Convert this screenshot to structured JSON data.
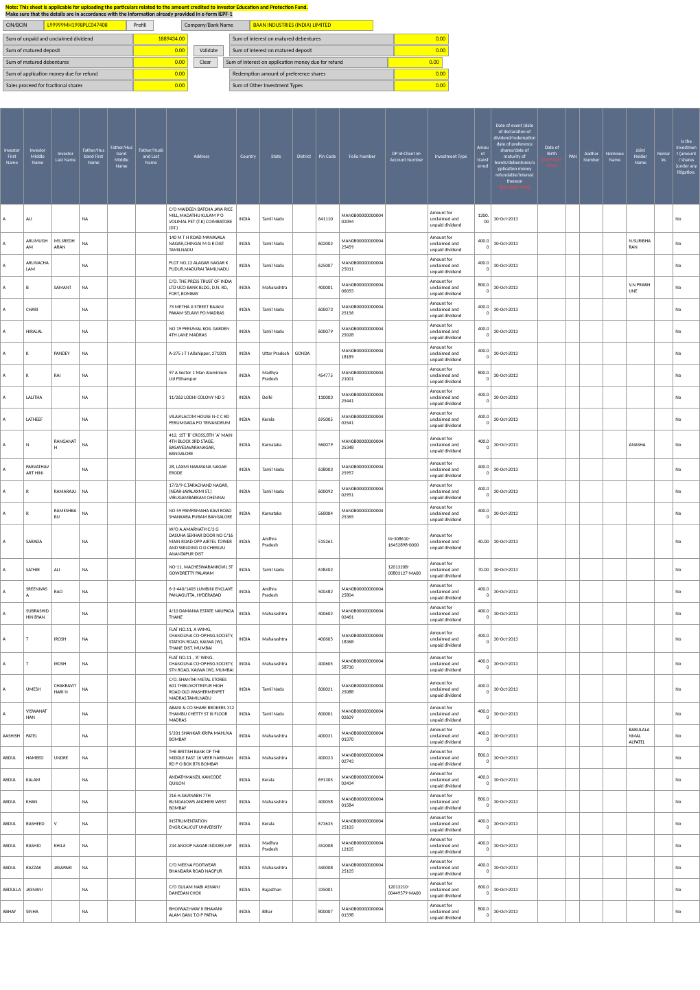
{
  "note": {
    "line1": "Note: This sheet is applicable for uploading the particulars related to the amount credited to Investor Education and Protection Fund.",
    "line2": "Make sure that the details are in accordance with the information already provided in e-form IEPF-1"
  },
  "form": {
    "cin_lbl": "CIN/BCIN",
    "cin_val": "L99999MH1998PLC047408",
    "prefill_btn": "Prefill",
    "company_lbl": "Company/Bank Name",
    "company_val": "BAAN INDUSTRIES (INDIA) LIMITED"
  },
  "sums": {
    "rows": [
      {
        "ll": "Sum of unpaid and unclaimed dividend",
        "lv": "1889434.00",
        "btn": "",
        "rl": "Sum of interest on matured debentures",
        "rv": "0.00"
      },
      {
        "ll": "Sum of matured deposit",
        "lv": "0.00",
        "btn": "Validate",
        "rl": "Sum of interest on matured deposit",
        "rv": "0.00"
      },
      {
        "ll": "Sum of matured debentures",
        "lv": "0.00",
        "btn": "Clear",
        "rl": "Sum of interest on application money due for refund",
        "rv": "0.00"
      },
      {
        "ll": "Sum of application money due for refund",
        "lv": "0.00",
        "btn": "",
        "rl": "Redemption amount of preference shares",
        "rv": "0.00"
      },
      {
        "ll": "Sales proceed for fractional shares",
        "lv": "0.00",
        "btn": "",
        "rl": "Sum of Other Investment Types",
        "rv": "0.00"
      }
    ]
  },
  "columns": [
    "Investor First Name",
    "Investor Middle Name",
    "Investor Last Name",
    "Father/Husband First Name",
    "Father/Husband Middle Name",
    "Father/Husband Last Name",
    "Address",
    "Country",
    "State",
    "District",
    "Pin Code",
    "Folio Number",
    "DP Id-Client Id-Account Number",
    "Investment Type",
    "Amount transferred",
    "Date of event (date of declaration of dividend/redemption date of preference shares/date of maturity of bonds/debentures/application money refundable/interest thereon",
    "Date of Birth",
    "PAN",
    "Aadhar Number",
    "Nominee Name",
    "Joint Holder Name",
    "Remarks",
    "Is the Investment (amount / shares )under any litigation."
  ],
  "col_special": {
    "doe_red": "(DD-MON-YYYY)",
    "dob_red": "(DD-MON-YYYY)"
  },
  "rows": [
    {
      "fn": "A",
      "mn": "ALI",
      "ln": "",
      "ffn": "NA",
      "addr": "C/O MAIDEEN BATCHA JAYA RICE MILL,MADATHU KULAM P O VOLIMAL PET (T.K) COIMBATORE (DT.)",
      "ctry": "INDIA",
      "st": "Tamil Nadu",
      "dist": "",
      "pin": "641110",
      "folio": "MAN0B00000000004 02094",
      "dp": "",
      "itype": "Amount for unclaimed and unpaid dividend",
      "amt": "1200.00",
      "doe": "30-Oct-2013",
      "lit": "No"
    },
    {
      "fn": "A",
      "mn": "ARUMUGHAM",
      "ln": "MS.SREDHARAN",
      "ffn": "NA",
      "addr": "140 M T H ROAD MANAVALA NAGAR,CHINGAI M G R DIST TAMILNADU",
      "ctry": "INDIA",
      "st": "Tamil Nadu",
      "dist": "",
      "pin": "602002",
      "folio": "MAN0B00000000004 25459",
      "dp": "",
      "itype": "Amount for unclaimed and unpaid dividend",
      "amt": "400.00",
      "doe": "30-Oct-2013",
      "jh": "N.SURIBHARAN",
      "lit": "No"
    },
    {
      "fn": "A",
      "mn": "ARUNACHALAM",
      "ln": "",
      "ffn": "NA",
      "addr": "PLOT NO.13 ALAGAR NAGAR K PUDUR,MADURAI TAMILNADU",
      "ctry": "INDIA",
      "st": "Tamil Nadu",
      "dist": "",
      "pin": "625007",
      "folio": "MAN0B00000000004 25011",
      "dp": "",
      "itype": "Amount for unclaimed and unpaid dividend",
      "amt": "400.00",
      "doe": "30-Oct-2013",
      "lit": "No"
    },
    {
      "fn": "A",
      "mn": "B",
      "ln": "SAMANT",
      "ffn": "NA",
      "addr": "C/O. THE PRESS TRUST OF INDIA LTD UCO BANK BLDG, D.N. RD, FORT, BOMBAY",
      "ctry": "INDIA",
      "st": "Maharashtra",
      "dist": "",
      "pin": "400001",
      "folio": "MAN0B00000000004 06055",
      "dp": "",
      "itype": "Amount for unclaimed and unpaid dividend",
      "amt": "800.00",
      "doe": "30-Oct-2013",
      "jh": "V.N.PRABHUNE",
      "lit": "No"
    },
    {
      "fn": "A",
      "mn": "CHARI",
      "ln": "",
      "ffn": "NA",
      "addr": "75 METHA JI STREET RAJANI PAKAM SELAIVI PO MADRAS",
      "ctry": "INDIA",
      "st": "Tamil Nadu",
      "dist": "",
      "pin": "600073",
      "folio": "MAN0B00000000004 25156",
      "dp": "",
      "itype": "Amount for unclaimed and unpaid dividend",
      "amt": "400.00",
      "doe": "30-Oct-2013",
      "lit": "No"
    },
    {
      "fn": "A",
      "mn": "HIRALAL",
      "ln": "",
      "ffn": "NA",
      "addr": "NO 19 PERUMAL KOIL GARDEN 4TH LANE MADRAS",
      "ctry": "INDIA",
      "st": "Tamil Nadu",
      "dist": "",
      "pin": "600079",
      "folio": "MAN0B00000000004 25028",
      "dp": "",
      "itype": "Amount for unclaimed and unpaid dividend",
      "amt": "400.00",
      "doe": "30-Oct-2013",
      "lit": "No"
    },
    {
      "fn": "A",
      "mn": "K",
      "ln": "PANDEY",
      "ffn": "NA",
      "addr": "A-275 J T I Allahipper, 271001",
      "ctry": "INDIA",
      "st": "Uttar Pradesh",
      "dist": "GONDA",
      "pin": "",
      "folio": "MAN0B00000000004 18189",
      "dp": "",
      "itype": "Amount for unclaimed and unpaid dividend",
      "amt": "400.00",
      "doe": "30-Oct-2013",
      "lit": "No"
    },
    {
      "fn": "A",
      "mn": "K",
      "ln": "RAI",
      "ffn": "NA",
      "addr": "97 A Sector 1 Man Aluminium Ltd Pithampur",
      "ctry": "INDIA",
      "st": "Madhya Pradesh",
      "dist": "",
      "pin": "454775",
      "folio": "MAN0B00000000004 21001",
      "dp": "",
      "itype": "Amount for unclaimed and unpaid dividend",
      "amt": "800.00",
      "doe": "30-Oct-2013",
      "lit": "No"
    },
    {
      "fn": "A",
      "mn": "LALITHA",
      "ln": "",
      "ffn": "NA",
      "addr": "11/262 LODHI COLONY ND 3",
      "ctry": "INDIA",
      "st": "Delhi",
      "dist": "",
      "pin": "110003",
      "folio": "MAN0B00000000004 25441",
      "dp": "",
      "itype": "Amount for unclaimed and unpaid dividend",
      "amt": "400.00",
      "doe": "30-Oct-2013",
      "lit": "No"
    },
    {
      "fn": "A",
      "mn": "LATHEEF",
      "ln": "",
      "ffn": "NA",
      "addr": "VILAVILACOM HOUSE N-C C RD PERUMGADA PO TRIVANDRUM",
      "ctry": "INDIA",
      "st": "Kerala",
      "dist": "",
      "pin": "695005",
      "folio": "MAN0B00000000004 02541",
      "dp": "",
      "itype": "Amount for unclaimed and unpaid dividend",
      "amt": "400.00",
      "doe": "30-Oct-2013",
      "lit": "No"
    },
    {
      "fn": "A",
      "mn": "N",
      "ln": "RANGANATH",
      "ffn": "NA",
      "addr": "412, 1ST 'B' CROSS,8TH 'A' MAIN 4TH BLOCK 3RD STAGE, BASAVESAVARANAGAR, BANGALORE",
      "ctry": "INDIA",
      "st": "Karnataka",
      "dist": "",
      "pin": "560079",
      "folio": "MAN0B00000000004 25348",
      "dp": "",
      "itype": "Amount for unclaimed and unpaid dividend",
      "amt": "400.00",
      "doe": "30-Oct-2013",
      "jh": "ANASHA",
      "lit": "No"
    },
    {
      "fn": "A",
      "mn": "PARVATHAVART HINI",
      "ln": "",
      "ffn": "NA",
      "addr": "28, LAXMI NARAYANA NAGAR ERODE",
      "ctry": "INDIA",
      "st": "Tamil Nadu",
      "dist": "",
      "pin": "638003",
      "folio": "MAN0B00000000004 25957",
      "dp": "",
      "itype": "Amount for unclaimed and unpaid dividend",
      "amt": "400.00",
      "doe": "30-Oct-2013",
      "lit": "No"
    },
    {
      "fn": "A",
      "mn": "R",
      "ln": "RAMARAJU",
      "ffn": "NA",
      "addr": "17/2/9-C,TARACHAND NAGAR, (NEAR-JAYALAXMI ST.) VIRUGAMBAKKAM CHENNAI",
      "ctry": "INDIA",
      "st": "Tamil Nadu",
      "dist": "",
      "pin": "600092",
      "folio": "MAN0B00000000004 02951",
      "dp": "",
      "itype": "Amount for unclaimed and unpaid dividend",
      "amt": "400.00",
      "doe": "30-Oct-2013",
      "lit": "No"
    },
    {
      "fn": "A",
      "mn": "R",
      "ln": "RAMESHBABU",
      "ffn": "NA",
      "addr": "NO 59 PAMPAMAHA KAVI ROAD SHANKARA PURAM BANGALORE",
      "ctry": "INDIA",
      "st": "Karnataka",
      "dist": "",
      "pin": "560004",
      "folio": "MAN0B00000000004 25365",
      "dp": "",
      "itype": "Amount for unclaimed and unpaid dividend",
      "amt": "400.00",
      "doe": "30-Oct-2013",
      "lit": "No"
    },
    {
      "fn": "A",
      "mn": "SARADA",
      "ln": "",
      "ffn": "NA",
      "addr": "W/O A.AMARNATH C/2 G DASUHA SEKHAR DOOR NO C/16 MAIN ROAD OPP AIRTEL TOWER AND WELDING O D CHERLVU ANANTAPUR DIST",
      "ctry": "INDIA",
      "st": "Andhra Pradesh",
      "dist": "",
      "pin": "515261",
      "folio": "",
      "dp": "IN-308610-16452898-0000",
      "itype": "Amount for unclaimed and unpaid dividend",
      "amt": "40.00",
      "doe": "30-Oct-2013",
      "lit": "No"
    },
    {
      "fn": "A",
      "mn": "SATHIR",
      "ln": "ALI",
      "ffn": "NA",
      "addr": "NO-11, MACHESWARANKOVIL ST GOWDRETTY PALAYAM",
      "ctry": "INDIA",
      "st": "Tamil Nadu",
      "dist": "",
      "pin": "638402",
      "folio": "",
      "dp": "1201320B-00803127-MA00",
      "itype": "Amount for unclaimed and unpaid dividend",
      "amt": "70.00",
      "doe": "30-Oct-2013",
      "lit": "No"
    },
    {
      "fn": "A",
      "mn": "SREENIVASA",
      "ln": "RAO",
      "ffn": "NA",
      "addr": "6-3-440/1405 LUMBINI ENCLAVE PANJAGUTTA, HYDERABAD",
      "ctry": "INDIA",
      "st": "Andhra Pradesh",
      "dist": "",
      "pin": "500482",
      "folio": "MAN0B00000000004 25804",
      "dp": "",
      "itype": "Amount for unclaimed and unpaid dividend",
      "amt": "400.00",
      "doe": "30-Oct-2013",
      "lit": "No"
    },
    {
      "fn": "A",
      "mn": "SUBRASHIDHIN BYAN",
      "ln": "",
      "ffn": "NA",
      "addr": "4/10 DAMANIA ESTATE NAUPADA THANE",
      "ctry": "INDIA",
      "st": "Maharashtra",
      "dist": "",
      "pin": "400602",
      "folio": "MAN0B00000000004 02461",
      "dp": "",
      "itype": "Amount for unclaimed and unpaid dividend",
      "amt": "400.00",
      "doe": "30-Oct-2013",
      "lit": "No"
    },
    {
      "fn": "A",
      "mn": "T",
      "ln": "IROSH",
      "ffn": "NA",
      "addr": "FLAT NO.11, A WIMG, CHANGUNA CO-OP.HSG.SOCIETY, STATION ROAD, KALWA (W), THANE DIST. MUMBAI",
      "ctry": "INDIA",
      "st": "Maharashtra",
      "dist": "",
      "pin": "400605",
      "folio": "MAN0B00000000004 18368",
      "dp": "",
      "itype": "Amount for unclaimed and unpaid dividend",
      "amt": "400.00",
      "doe": "30-Oct-2013",
      "lit": "No"
    },
    {
      "fn": "A",
      "mn": "T",
      "ln": "IROSH",
      "ffn": "NA",
      "addr": "FLAT NO.11 , 'A' WING, CHANGUNA CO-OP.HSG.SOCIETY, STN ROAD, KALWA (W), MUMBAI",
      "ctry": "INDIA",
      "st": "Maharashtra",
      "dist": "",
      "pin": "400605",
      "folio": "MAN0B00000000004 58730",
      "dp": "",
      "itype": "Amount for unclaimed and unpaid dividend",
      "amt": "400.00",
      "doe": "30-Oct-2013",
      "lit": "No"
    },
    {
      "fn": "A",
      "mn": "UMESH",
      "ln": "CHAKRAVITHARI N",
      "ffn": "NA",
      "addr": "C/O. SHANTHI METAL STORES 601 THIRUVOTTRIYUR HIGH ROAD OLD WASHERMENPET MADRAS,TAMILNADU",
      "ctry": "INDIA",
      "st": "Tamil Nadu",
      "dist": "",
      "pin": "600021",
      "folio": "MAN0B00000000004 25088",
      "dp": "",
      "itype": "Amount for unclaimed and unpaid dividend",
      "amt": "400.00",
      "doe": "30-Oct-2013",
      "lit": "No"
    },
    {
      "fn": "A",
      "mn": "VISWANATHAN",
      "ln": "",
      "ffn": "NA",
      "addr": "ABANI & CO SHARE BROKERS 312 THAMBU CHETTY ST III FLOOR MADRAS",
      "ctry": "INDIA",
      "st": "Tamil Nadu",
      "dist": "",
      "pin": "600001",
      "folio": "MAN0B00000000004 02609",
      "dp": "",
      "itype": "Amount for unclaimed and unpaid dividend",
      "amt": "400.00",
      "doe": "30-Oct-2013",
      "lit": "No"
    },
    {
      "fn": "AASHISH",
      "mn": "PATEL",
      "ln": "",
      "ffn": "NA",
      "addr": "S/201 SHANKAR KRIPA MAHUVA BOMBAY",
      "ctry": "INDIA",
      "st": "Maharashtra",
      "dist": "",
      "pin": "400031",
      "folio": "MAN0B00000000004 01370",
      "dp": "",
      "itype": "Amount for unclaimed and unpaid dividend",
      "amt": "400.00",
      "doe": "30-Oct-2013",
      "jh": "BABULALANMAL ALPATEL",
      "lit": "No"
    },
    {
      "fn": "ABDUL",
      "mn": "HAMEED",
      "ln": "UNDRE",
      "ffn": "NA",
      "addr": "THE BRITISH BANK OF THE MIDDLE EAST 16 VEER NARIMAN RD P O BOX 876 BOMBAY",
      "ctry": "INDIA",
      "st": "Maharashtra",
      "dist": "",
      "pin": "400023",
      "folio": "MAN0B00000000004 02743",
      "dp": "",
      "itype": "Amount for unclaimed and unpaid dividend",
      "amt": "800.00",
      "doe": "30-Oct-2013",
      "lit": "No"
    },
    {
      "fn": "ABDUL",
      "mn": "KALAM",
      "ln": "",
      "ffn": "NA",
      "addr": "ANDATHMANZIL KANCODE QUILON",
      "ctry": "INDIA",
      "st": "Kerala",
      "dist": "",
      "pin": "691305",
      "folio": "MAN0B00000000004 02434",
      "dp": "",
      "itype": "Amount for unclaimed and unpaid dividend",
      "amt": "400.00",
      "doe": "30-Oct-2013",
      "lit": "No"
    },
    {
      "fn": "ABDUL",
      "mn": "KHAN",
      "ln": "",
      "ffn": "NA",
      "addr": "316 H.SAVINABH 7TH BUNGALOWS ANDHERI WEST BOMBAY",
      "ctry": "INDIA",
      "st": "Maharashtra",
      "dist": "",
      "pin": "400058",
      "folio": "MAN0B00000000004 01584",
      "dp": "",
      "itype": "Amount for unclaimed and unpaid dividend",
      "amt": "800.00",
      "doe": "30-Oct-2013",
      "lit": "No"
    },
    {
      "fn": "ABDUL",
      "mn": "RASHEED",
      "ln": "V",
      "ffn": "NA",
      "addr": "INSTRUMENTATION ENGR.CALICUT UNIVERSITY",
      "ctry": "INDIA",
      "st": "Kerala",
      "dist": "",
      "pin": "673635",
      "folio": "MAN0B00000000004 25103",
      "dp": "",
      "itype": "Amount for unclaimed and unpaid dividend",
      "amt": "400.00",
      "doe": "30-Oct-2013",
      "lit": "No"
    },
    {
      "fn": "ABDUL",
      "mn": "RASHID",
      "ln": "KHILJI",
      "ffn": "NA",
      "addr": "234 ANOOP NAGAR INDORE,MP",
      "ctry": "INDIA",
      "st": "Madhya Pradesh",
      "dist": "",
      "pin": "452008",
      "folio": "MAN0B00000000004 12105",
      "dp": "",
      "itype": "Amount for unclaimed and unpaid dividend",
      "amt": "400.00",
      "doe": "30-Oct-2013",
      "lit": "No"
    },
    {
      "fn": "ABDUL",
      "mn": "RAZZAK",
      "ln": "JASAPARI",
      "ffn": "NA",
      "addr": "C/O MEENA FOOTWEAR BHANDARA ROAD NAGPUR",
      "ctry": "INDIA",
      "st": "Maharashtra",
      "dist": "",
      "pin": "440008",
      "folio": "MAN0B00000000004 25105",
      "dp": "",
      "itype": "Amount for unclaimed and unpaid dividend",
      "amt": "400.00",
      "doe": "30-Oct-2013",
      "lit": "No"
    },
    {
      "fn": "ABDULLA",
      "mn": "JASNANI",
      "ln": "",
      "ffn": "NA",
      "addr": "C/O GULAM NABI ASNANI DAHEDAN CHOK",
      "ctry": "INDIA",
      "st": "Rajasthan",
      "dist": "",
      "pin": "335001",
      "folio": "",
      "dp": "12013210-00449579-MA00",
      "itype": "Amount for unclaimed and unpaid dividend",
      "amt": "600.00",
      "doe": "30-Oct-2013",
      "lit": "No"
    },
    {
      "fn": "ABHAY",
      "mn": "SINHA",
      "ln": "",
      "ffn": "NA",
      "addr": "BHOJWAZI-WAY II BHAVANI ALAM GANJ T.O P PATNA",
      "ctry": "INDIA",
      "st": "Bihar",
      "dist": "",
      "pin": "800007",
      "folio": "MAN0B00000000004 01598",
      "dp": "",
      "itype": "Amount for unclaimed and unpaid dividend",
      "amt": "800.00",
      "doe": "30-Oct-2013",
      "lit": "No"
    }
  ]
}
